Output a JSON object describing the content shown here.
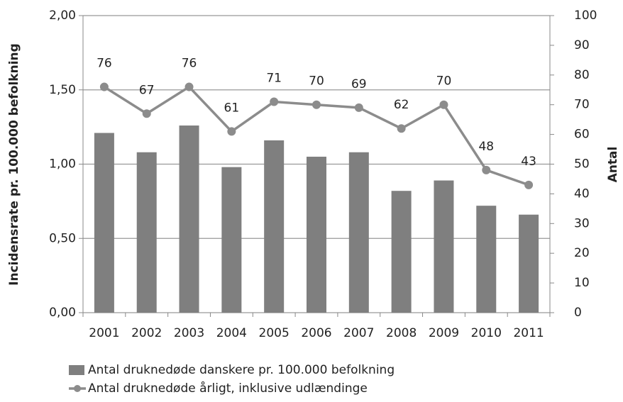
{
  "chart_data": {
    "type": "bar",
    "categories": [
      "2001",
      "2002",
      "2003",
      "2004",
      "2005",
      "2006",
      "2007",
      "2008",
      "2009",
      "2010",
      "2011"
    ],
    "series": [
      {
        "name": "Antal druknedøde danskere pr. 100.000 befolkning",
        "type": "bar",
        "color": "#7f7f7f",
        "values": [
          1.21,
          1.08,
          1.26,
          0.98,
          1.16,
          1.05,
          1.08,
          0.82,
          0.89,
          0.72,
          0.66
        ]
      },
      {
        "name": "Antal druknedøde årligt, inklusive udlændinge",
        "type": "line",
        "axis": "y2",
        "color": "#8c8c8c",
        "values": [
          76,
          67,
          76,
          61,
          71,
          70,
          69,
          62,
          70,
          48,
          43
        ],
        "data_labels": true
      }
    ],
    "ylabel": "Incidensrate pr. 100.000 befolkning",
    "y2label": "Antal",
    "ylim": [
      0,
      2
    ],
    "yticks": [
      {
        "value": 0,
        "label": "0,00"
      },
      {
        "value": 0.5,
        "label": "0,50"
      },
      {
        "value": 1,
        "label": "1,00"
      },
      {
        "value": 1.5,
        "label": "1,50"
      },
      {
        "value": 2,
        "label": "2,00"
      }
    ],
    "y2lim": [
      0,
      100
    ],
    "y2ticks": [
      0,
      10,
      20,
      30,
      40,
      50,
      60,
      70,
      80,
      90,
      100
    ],
    "grid": true,
    "legend": "bottom"
  }
}
